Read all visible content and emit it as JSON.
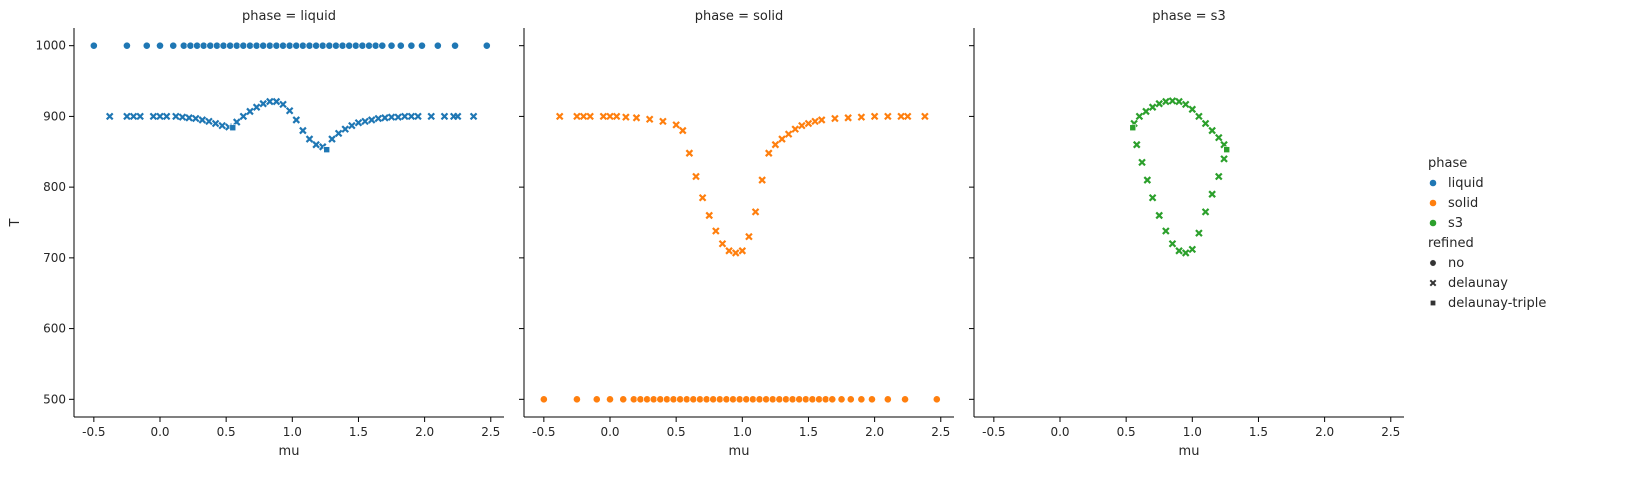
{
  "chart_data": [
    {
      "type": "scatter",
      "title": "phase = liquid",
      "xlabel": "mu",
      "ylabel": "T",
      "xlim": [
        -0.65,
        2.6
      ],
      "ylim": [
        475,
        1025
      ],
      "xticks": [
        "-0.5",
        "0.0",
        "0.5",
        "1.0",
        "1.5",
        "2.0",
        "2.5"
      ],
      "yticks": [
        "500",
        "600",
        "700",
        "800",
        "900",
        "1000"
      ],
      "grid": false,
      "series": [
        {
          "name": "liquid",
          "refined": "no",
          "x": [
            -0.5,
            -0.25,
            -0.1,
            0.0,
            0.1,
            0.18,
            0.23,
            0.28,
            0.33,
            0.38,
            0.43,
            0.48,
            0.53,
            0.58,
            0.63,
            0.68,
            0.73,
            0.78,
            0.83,
            0.88,
            0.93,
            0.98,
            1.03,
            1.08,
            1.13,
            1.18,
            1.23,
            1.28,
            1.33,
            1.38,
            1.43,
            1.48,
            1.53,
            1.58,
            1.63,
            1.68,
            1.75,
            1.82,
            1.9,
            1.98,
            2.1,
            2.23,
            2.47
          ],
          "y": [
            1000,
            1000,
            1000,
            1000,
            1000,
            1000,
            1000,
            1000,
            1000,
            1000,
            1000,
            1000,
            1000,
            1000,
            1000,
            1000,
            1000,
            1000,
            1000,
            1000,
            1000,
            1000,
            1000,
            1000,
            1000,
            1000,
            1000,
            1000,
            1000,
            1000,
            1000,
            1000,
            1000,
            1000,
            1000,
            1000,
            1000,
            1000,
            1000,
            1000,
            1000,
            1000,
            1000
          ]
        },
        {
          "name": "liquid",
          "refined": "delaunay",
          "x": [
            -0.38,
            -0.25,
            -0.2,
            -0.15,
            -0.05,
            0.0,
            0.05,
            0.12,
            0.17,
            0.22,
            0.27,
            0.32,
            0.37,
            0.42,
            0.47,
            0.52,
            0.58,
            0.63,
            0.68,
            0.73,
            0.78,
            0.83,
            0.88,
            0.93,
            0.98,
            1.03,
            1.08,
            1.13,
            1.18,
            1.23,
            1.3,
            1.35,
            1.4,
            1.45,
            1.5,
            1.55,
            1.6,
            1.65,
            1.7,
            1.75,
            1.8,
            1.85,
            1.9,
            1.95,
            2.05,
            2.15,
            2.22,
            2.25,
            2.37
          ],
          "y": [
            900,
            900,
            900,
            900,
            900,
            900,
            900,
            900,
            899,
            898,
            897,
            895,
            893,
            890,
            887,
            885,
            892,
            900,
            907,
            913,
            918,
            921,
            921,
            917,
            908,
            895,
            880,
            868,
            860,
            857,
            868,
            876,
            882,
            887,
            891,
            893,
            895,
            897,
            898,
            899,
            899,
            900,
            900,
            900,
            900,
            900,
            900,
            900,
            900
          ]
        },
        {
          "name": "liquid",
          "refined": "delaunay-triple",
          "x": [
            0.55,
            1.26
          ],
          "y": [
            884,
            853
          ]
        }
      ]
    },
    {
      "type": "scatter",
      "title": "phase = solid",
      "xlabel": "mu",
      "ylabel": "",
      "xlim": [
        -0.65,
        2.6
      ],
      "ylim": [
        475,
        1025
      ],
      "xticks": [
        "-0.5",
        "0.0",
        "0.5",
        "1.0",
        "1.5",
        "2.0",
        "2.5"
      ],
      "yticks": [],
      "grid": false,
      "series": [
        {
          "name": "solid",
          "refined": "no",
          "x": [
            -0.5,
            -0.25,
            -0.1,
            0.0,
            0.1,
            0.18,
            0.23,
            0.28,
            0.33,
            0.38,
            0.43,
            0.48,
            0.53,
            0.58,
            0.63,
            0.68,
            0.73,
            0.78,
            0.83,
            0.88,
            0.93,
            0.98,
            1.03,
            1.08,
            1.13,
            1.18,
            1.23,
            1.28,
            1.33,
            1.38,
            1.43,
            1.48,
            1.53,
            1.58,
            1.63,
            1.68,
            1.75,
            1.82,
            1.9,
            1.98,
            2.1,
            2.23,
            2.47
          ],
          "y": [
            500,
            500,
            500,
            500,
            500,
            500,
            500,
            500,
            500,
            500,
            500,
            500,
            500,
            500,
            500,
            500,
            500,
            500,
            500,
            500,
            500,
            500,
            500,
            500,
            500,
            500,
            500,
            500,
            500,
            500,
            500,
            500,
            500,
            500,
            500,
            500,
            500,
            500,
            500,
            500,
            500,
            500,
            500
          ]
        },
        {
          "name": "solid",
          "refined": "delaunay",
          "x": [
            -0.38,
            -0.25,
            -0.2,
            -0.15,
            -0.05,
            0.0,
            0.05,
            0.12,
            0.2,
            0.3,
            0.4,
            0.5,
            0.55,
            0.6,
            0.65,
            0.7,
            0.75,
            0.8,
            0.85,
            0.9,
            0.95,
            1.0,
            1.05,
            1.1,
            1.15,
            1.2,
            1.25,
            1.3,
            1.35,
            1.4,
            1.45,
            1.5,
            1.55,
            1.6,
            1.7,
            1.8,
            1.9,
            2.0,
            2.1,
            2.2,
            2.25,
            2.38
          ],
          "y": [
            900,
            900,
            900,
            900,
            900,
            900,
            900,
            899,
            898,
            896,
            893,
            888,
            880,
            848,
            815,
            785,
            760,
            738,
            720,
            710,
            707,
            710,
            730,
            765,
            810,
            848,
            860,
            868,
            875,
            882,
            887,
            890,
            893,
            895,
            897,
            898,
            899,
            900,
            900,
            900,
            900,
            900
          ]
        }
      ]
    },
    {
      "type": "scatter",
      "title": "phase = s3",
      "xlabel": "mu",
      "ylabel": "",
      "xlim": [
        -0.65,
        2.6
      ],
      "ylim": [
        475,
        1025
      ],
      "xticks": [
        "-0.5",
        "0.0",
        "0.5",
        "1.0",
        "1.5",
        "2.0",
        "2.5"
      ],
      "yticks": [],
      "grid": false,
      "series": [
        {
          "name": "s3",
          "refined": "delaunay",
          "x": [
            0.56,
            0.6,
            0.65,
            0.7,
            0.75,
            0.8,
            0.85,
            0.9,
            0.95,
            1.0,
            1.05,
            1.1,
            1.15,
            1.2,
            1.24,
            0.58,
            0.62,
            0.66,
            0.7,
            0.75,
            0.8,
            0.85,
            0.9,
            0.95,
            1.0,
            1.05,
            1.1,
            1.15,
            1.2,
            1.24
          ],
          "y": [
            890,
            900,
            907,
            913,
            918,
            921,
            922,
            921,
            917,
            910,
            900,
            890,
            880,
            870,
            860,
            860,
            835,
            810,
            785,
            760,
            738,
            720,
            710,
            707,
            712,
            735,
            765,
            790,
            815,
            840
          ]
        },
        {
          "name": "s3",
          "refined": "delaunay-triple",
          "x": [
            0.55,
            1.26
          ],
          "y": [
            884,
            853
          ]
        }
      ]
    }
  ],
  "legend": {
    "placement": "right",
    "hue_title": "phase",
    "hue_items": [
      {
        "label": "liquid",
        "color": "#1f77b4"
      },
      {
        "label": "solid",
        "color": "#ff7f0e"
      },
      {
        "label": "s3",
        "color": "#2ca02c"
      }
    ],
    "style_title": "refined",
    "style_items": [
      {
        "label": "no",
        "marker": "circle"
      },
      {
        "label": "delaunay",
        "marker": "x"
      },
      {
        "label": "delaunay-triple",
        "marker": "square"
      }
    ]
  },
  "colors": {
    "liquid": "#1f77b4",
    "solid": "#ff7f0e",
    "s3": "#2ca02c",
    "axis": "#000000",
    "text": "#262626"
  }
}
